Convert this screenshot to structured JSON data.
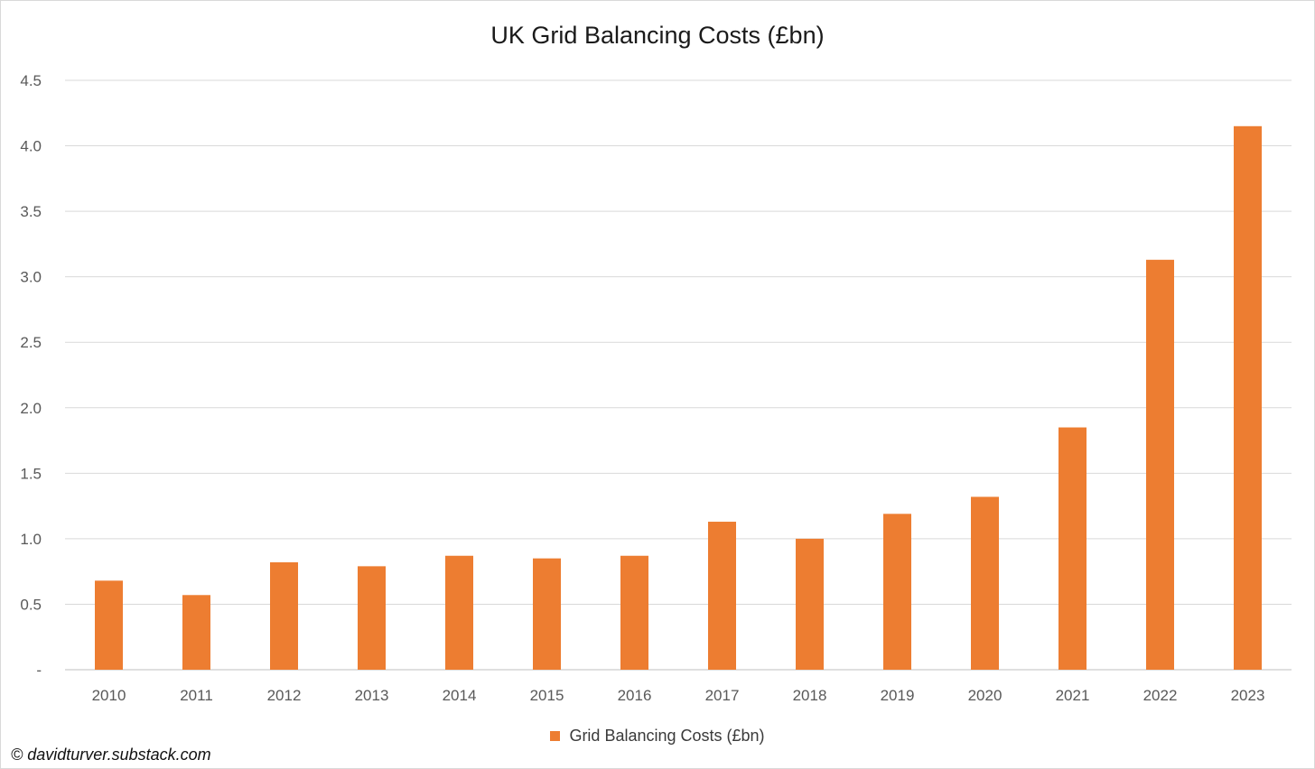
{
  "chart_data": {
    "type": "bar",
    "title": "UK Grid Balancing Costs (£bn)",
    "xlabel": "",
    "ylabel": "",
    "categories": [
      "2010",
      "2011",
      "2012",
      "2013",
      "2014",
      "2015",
      "2016",
      "2017",
      "2018",
      "2019",
      "2020",
      "2021",
      "2022",
      "2023"
    ],
    "series": [
      {
        "name": "Grid Balancing Costs (£bn)",
        "color": "#ED7D31",
        "values": [
          0.68,
          0.57,
          0.82,
          0.79,
          0.87,
          0.85,
          0.87,
          1.13,
          1.0,
          1.19,
          1.32,
          1.85,
          3.13,
          4.15
        ]
      }
    ],
    "ylim": [
      0,
      4.5
    ],
    "yticks": [
      "-",
      "0.5",
      "1.0",
      "1.5",
      "2.0",
      "2.5",
      "3.0",
      "3.5",
      "4.0",
      "4.5"
    ],
    "grid": true,
    "legend_position": "bottom"
  },
  "credit": "© davidturver.substack.com"
}
